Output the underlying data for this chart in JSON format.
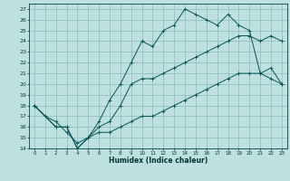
{
  "xlabel": "Humidex (Indice chaleur)",
  "bg_color": "#bde0e0",
  "grid_color": "#88bbbb",
  "line_color": "#005555",
  "xlim": [
    -0.5,
    23.5
  ],
  "ylim": [
    14,
    27.5
  ],
  "xticks": [
    0,
    1,
    2,
    3,
    4,
    5,
    6,
    7,
    8,
    9,
    10,
    11,
    12,
    13,
    14,
    15,
    16,
    17,
    18,
    19,
    20,
    21,
    22,
    23
  ],
  "yticks": [
    14,
    15,
    16,
    17,
    18,
    19,
    20,
    21,
    22,
    23,
    24,
    25,
    26,
    27
  ],
  "line1_x": [
    0,
    1,
    2,
    3,
    4,
    5,
    6,
    7,
    8,
    9,
    10,
    11,
    12,
    13,
    14,
    15,
    16,
    17,
    18,
    19,
    20,
    21,
    22,
    23
  ],
  "line1_y": [
    18,
    17,
    16.5,
    15.5,
    14.5,
    15,
    16.5,
    18.5,
    20,
    22,
    24,
    23.5,
    25,
    25.5,
    27,
    26.5,
    26,
    25.5,
    26.5,
    25.5,
    25,
    21,
    20.5,
    20
  ],
  "line2_x": [
    0,
    2,
    3,
    4,
    5,
    6,
    7,
    8,
    9,
    10,
    11,
    12,
    13,
    14,
    15,
    16,
    17,
    18,
    19,
    20,
    21,
    22,
    23
  ],
  "line2_y": [
    18,
    16,
    16,
    14,
    15,
    16,
    16.5,
    18,
    20,
    20.5,
    20.5,
    21,
    21.5,
    22,
    22.5,
    23,
    23.5,
    24,
    24.5,
    24.5,
    24,
    24.5,
    24
  ],
  "line3_x": [
    0,
    2,
    3,
    4,
    5,
    6,
    7,
    8,
    9,
    10,
    11,
    12,
    13,
    14,
    15,
    16,
    17,
    18,
    19,
    20,
    21,
    22,
    23
  ],
  "line3_y": [
    18,
    16,
    16,
    14,
    15,
    15.5,
    15.5,
    16,
    16.5,
    17,
    17,
    17.5,
    18,
    18.5,
    19,
    19.5,
    20,
    20.5,
    21,
    21,
    21,
    21.5,
    20
  ]
}
